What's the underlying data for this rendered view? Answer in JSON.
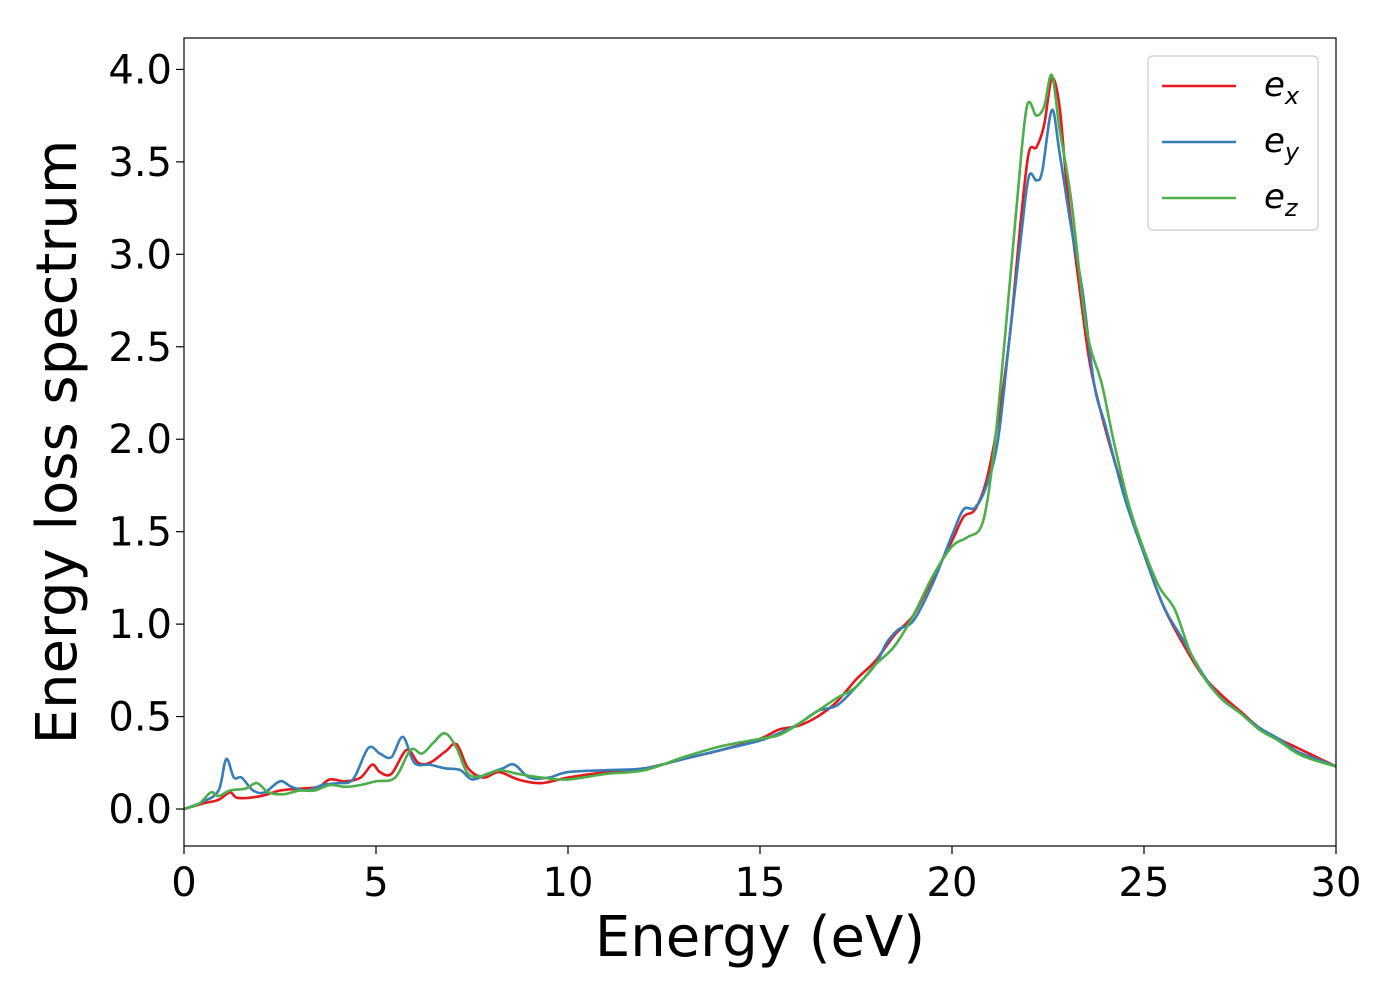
{
  "chart_data": {
    "type": "line",
    "xlabel": "Energy (eV)",
    "ylabel": "Energy loss spectrum",
    "xlim": [
      0,
      30
    ],
    "ylim": [
      -0.2,
      4.17
    ],
    "xticks": [
      0,
      5,
      10,
      15,
      20,
      25,
      30
    ],
    "xtick_labels": [
      "0",
      "5",
      "10",
      "15",
      "20",
      "25",
      "30"
    ],
    "yticks": [
      0.0,
      0.5,
      1.0,
      1.5,
      2.0,
      2.5,
      3.0,
      3.5,
      4.0
    ],
    "ytick_labels": [
      "0.0",
      "0.5",
      "1.0",
      "1.5",
      "2.0",
      "2.5",
      "3.0",
      "3.5",
      "4.0"
    ],
    "grid": false,
    "legend_position": "top-right",
    "series": [
      {
        "name": "e",
        "subscript": "x",
        "color": "#e41a1c",
        "points": [
          [
            0,
            0
          ],
          [
            0.5,
            0.03
          ],
          [
            0.9,
            0.05
          ],
          [
            1.2,
            0.09
          ],
          [
            1.4,
            0.06
          ],
          [
            2,
            0.07
          ],
          [
            2.5,
            0.1
          ],
          [
            3,
            0.11
          ],
          [
            3.5,
            0.12
          ],
          [
            3.8,
            0.16
          ],
          [
            4.2,
            0.15
          ],
          [
            4.6,
            0.17
          ],
          [
            4.9,
            0.24
          ],
          [
            5.1,
            0.2
          ],
          [
            5.4,
            0.19
          ],
          [
            5.8,
            0.32
          ],
          [
            6.1,
            0.25
          ],
          [
            6.4,
            0.25
          ],
          [
            6.8,
            0.31
          ],
          [
            7.1,
            0.35
          ],
          [
            7.4,
            0.22
          ],
          [
            7.8,
            0.17
          ],
          [
            8.2,
            0.2
          ],
          [
            8.7,
            0.16
          ],
          [
            9.3,
            0.14
          ],
          [
            10,
            0.17
          ],
          [
            11,
            0.2
          ],
          [
            12,
            0.22
          ],
          [
            13,
            0.27
          ],
          [
            14,
            0.32
          ],
          [
            15,
            0.38
          ],
          [
            15.5,
            0.43
          ],
          [
            16,
            0.45
          ],
          [
            16.5,
            0.5
          ],
          [
            17,
            0.58
          ],
          [
            17.5,
            0.7
          ],
          [
            18,
            0.8
          ],
          [
            18.5,
            0.94
          ],
          [
            19,
            1.05
          ],
          [
            19.5,
            1.25
          ],
          [
            20,
            1.45
          ],
          [
            20.3,
            1.58
          ],
          [
            20.6,
            1.62
          ],
          [
            20.9,
            1.78
          ],
          [
            21.2,
            2.1
          ],
          [
            21.5,
            2.55
          ],
          [
            21.8,
            3.2
          ],
          [
            22,
            3.55
          ],
          [
            22.2,
            3.58
          ],
          [
            22.4,
            3.7
          ],
          [
            22.6,
            3.95
          ],
          [
            22.8,
            3.8
          ],
          [
            23,
            3.35
          ],
          [
            23.3,
            2.85
          ],
          [
            23.6,
            2.4
          ],
          [
            24,
            2.05
          ],
          [
            24.5,
            1.7
          ],
          [
            25,
            1.38
          ],
          [
            25.5,
            1.1
          ],
          [
            26,
            0.9
          ],
          [
            26.5,
            0.73
          ],
          [
            27,
            0.62
          ],
          [
            27.5,
            0.53
          ],
          [
            28,
            0.44
          ],
          [
            28.5,
            0.38
          ],
          [
            29,
            0.33
          ],
          [
            29.5,
            0.28
          ],
          [
            30,
            0.23
          ]
        ]
      },
      {
        "name": "e",
        "subscript": "y",
        "color": "#377eb8",
        "points": [
          [
            0,
            0
          ],
          [
            0.5,
            0.04
          ],
          [
            0.9,
            0.1
          ],
          [
            1.1,
            0.27
          ],
          [
            1.3,
            0.17
          ],
          [
            1.5,
            0.17
          ],
          [
            1.8,
            0.1
          ],
          [
            2.1,
            0.09
          ],
          [
            2.5,
            0.15
          ],
          [
            2.8,
            0.12
          ],
          [
            3.2,
            0.1
          ],
          [
            3.6,
            0.13
          ],
          [
            4,
            0.14
          ],
          [
            4.4,
            0.16
          ],
          [
            4.8,
            0.33
          ],
          [
            5.1,
            0.3
          ],
          [
            5.4,
            0.28
          ],
          [
            5.7,
            0.39
          ],
          [
            6,
            0.25
          ],
          [
            6.4,
            0.24
          ],
          [
            6.8,
            0.22
          ],
          [
            7.2,
            0.21
          ],
          [
            7.5,
            0.16
          ],
          [
            7.9,
            0.19
          ],
          [
            8.3,
            0.22
          ],
          [
            8.6,
            0.24
          ],
          [
            9,
            0.17
          ],
          [
            9.5,
            0.17
          ],
          [
            10,
            0.2
          ],
          [
            11,
            0.21
          ],
          [
            12,
            0.22
          ],
          [
            13,
            0.27
          ],
          [
            14,
            0.32
          ],
          [
            15,
            0.37
          ],
          [
            15.5,
            0.41
          ],
          [
            16,
            0.46
          ],
          [
            16.5,
            0.53
          ],
          [
            17,
            0.56
          ],
          [
            17.5,
            0.66
          ],
          [
            18,
            0.78
          ],
          [
            18.3,
            0.9
          ],
          [
            18.6,
            0.97
          ],
          [
            19,
            1.02
          ],
          [
            19.5,
            1.22
          ],
          [
            20,
            1.48
          ],
          [
            20.3,
            1.62
          ],
          [
            20.6,
            1.63
          ],
          [
            20.9,
            1.75
          ],
          [
            21.2,
            2.0
          ],
          [
            21.5,
            2.55
          ],
          [
            21.8,
            3.1
          ],
          [
            22,
            3.42
          ],
          [
            22.2,
            3.4
          ],
          [
            22.35,
            3.45
          ],
          [
            22.6,
            3.78
          ],
          [
            22.8,
            3.55
          ],
          [
            23.1,
            3.15
          ],
          [
            23.4,
            2.8
          ],
          [
            23.7,
            2.3
          ],
          [
            24,
            2.07
          ],
          [
            24.5,
            1.68
          ],
          [
            25,
            1.38
          ],
          [
            25.5,
            1.1
          ],
          [
            26,
            0.92
          ],
          [
            26.5,
            0.74
          ],
          [
            27,
            0.6
          ],
          [
            27.5,
            0.52
          ],
          [
            28,
            0.44
          ],
          [
            28.5,
            0.38
          ],
          [
            29,
            0.31
          ],
          [
            29.5,
            0.27
          ],
          [
            30,
            0.23
          ]
        ]
      },
      {
        "name": "e",
        "subscript": "z",
        "color": "#4daf4a",
        "points": [
          [
            0,
            0
          ],
          [
            0.4,
            0.03
          ],
          [
            0.7,
            0.09
          ],
          [
            0.9,
            0.07
          ],
          [
            1.2,
            0.1
          ],
          [
            1.6,
            0.11
          ],
          [
            1.9,
            0.14
          ],
          [
            2.2,
            0.09
          ],
          [
            2.6,
            0.08
          ],
          [
            3,
            0.1
          ],
          [
            3.4,
            0.1
          ],
          [
            3.8,
            0.13
          ],
          [
            4.2,
            0.12
          ],
          [
            4.6,
            0.13
          ],
          [
            5,
            0.15
          ],
          [
            5.5,
            0.17
          ],
          [
            5.9,
            0.32
          ],
          [
            6.2,
            0.3
          ],
          [
            6.5,
            0.36
          ],
          [
            6.8,
            0.41
          ],
          [
            7.1,
            0.33
          ],
          [
            7.4,
            0.19
          ],
          [
            7.8,
            0.18
          ],
          [
            8.2,
            0.21
          ],
          [
            8.7,
            0.19
          ],
          [
            9.3,
            0.17
          ],
          [
            10,
            0.16
          ],
          [
            11,
            0.19
          ],
          [
            12,
            0.21
          ],
          [
            13,
            0.28
          ],
          [
            14,
            0.34
          ],
          [
            15,
            0.38
          ],
          [
            15.5,
            0.4
          ],
          [
            16,
            0.46
          ],
          [
            16.5,
            0.53
          ],
          [
            17,
            0.6
          ],
          [
            17.5,
            0.66
          ],
          [
            18,
            0.78
          ],
          [
            18.5,
            0.88
          ],
          [
            19,
            1.05
          ],
          [
            19.5,
            1.26
          ],
          [
            20,
            1.42
          ],
          [
            20.4,
            1.47
          ],
          [
            20.8,
            1.55
          ],
          [
            21.1,
            1.95
          ],
          [
            21.4,
            2.6
          ],
          [
            21.7,
            3.3
          ],
          [
            21.95,
            3.8
          ],
          [
            22.2,
            3.75
          ],
          [
            22.4,
            3.8
          ],
          [
            22.6,
            3.97
          ],
          [
            22.8,
            3.68
          ],
          [
            23.1,
            3.3
          ],
          [
            23.5,
            2.6
          ],
          [
            23.9,
            2.3
          ],
          [
            24.2,
            2.0
          ],
          [
            24.6,
            1.65
          ],
          [
            25,
            1.4
          ],
          [
            25.4,
            1.2
          ],
          [
            25.8,
            1.08
          ],
          [
            26.2,
            0.85
          ],
          [
            26.6,
            0.7
          ],
          [
            27,
            0.6
          ],
          [
            27.5,
            0.52
          ],
          [
            28,
            0.43
          ],
          [
            28.5,
            0.37
          ],
          [
            29,
            0.3
          ],
          [
            29.5,
            0.26
          ],
          [
            30,
            0.23
          ]
        ]
      }
    ]
  }
}
